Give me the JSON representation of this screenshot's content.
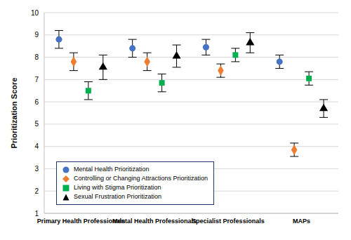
{
  "chart_data": {
    "type": "scatter",
    "y_label": "Prioritization Score",
    "categories": [
      "Primary Health Professionals",
      "Mental Health Professionals",
      "Specialist Professionals",
      "MAPs"
    ],
    "ylim": [
      1,
      10
    ],
    "yticks": [
      1,
      2,
      3,
      4,
      5,
      6,
      7,
      8,
      9,
      10
    ],
    "grid": true,
    "legend": "lower-left",
    "series": [
      {
        "name": "Mental Health Prioritization",
        "color": "#4472c4",
        "marker": "circle",
        "values": [
          8.8,
          8.4,
          8.45,
          7.8
        ],
        "errors": [
          0.4,
          0.4,
          0.35,
          0.3
        ]
      },
      {
        "name": "Controlling or Changing Attractions Prioritization",
        "color": "#ed7d31",
        "marker": "diamond",
        "values": [
          7.8,
          7.8,
          7.4,
          3.85
        ],
        "errors": [
          0.4,
          0.4,
          0.3,
          0.3
        ]
      },
      {
        "name": "Living with Stigma Prioritization",
        "color": "#00b050",
        "marker": "square",
        "values": [
          6.5,
          6.85,
          8.1,
          7.05
        ],
        "errors": [
          0.4,
          0.4,
          0.3,
          0.3
        ]
      },
      {
        "name": "Sexual Frustration Prioritization",
        "color": "#000000",
        "marker": "triangle",
        "values": [
          7.55,
          8.05,
          8.65,
          5.7
        ],
        "errors": [
          0.55,
          0.5,
          0.45,
          0.4
        ]
      }
    ]
  }
}
